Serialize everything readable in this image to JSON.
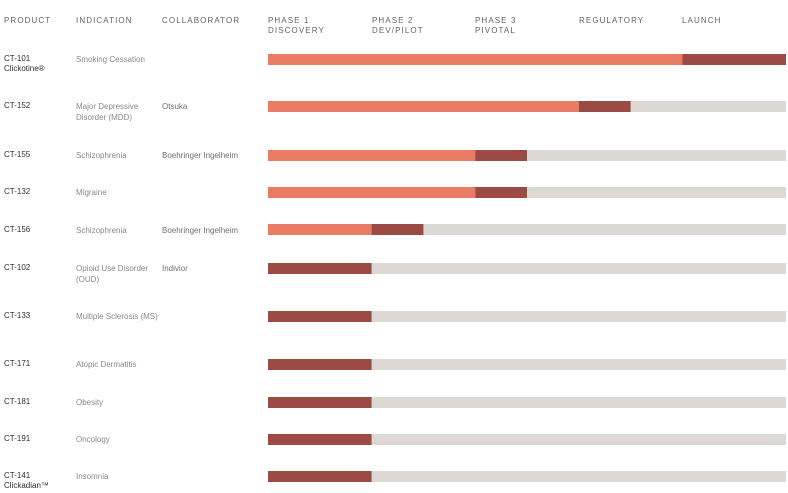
{
  "headers": {
    "product": "PRODUCT",
    "indication": "INDICATION",
    "collaborator": "COLLABORATOR",
    "phases": [
      {
        "line1": "PHASE 1",
        "line2": "DISCOVERY"
      },
      {
        "line1": "PHASE 2",
        "line2": "DEV/PILOT"
      },
      {
        "line1": "PHASE 3",
        "line2": "PIVOTAL"
      },
      {
        "line1": "REGULATORY",
        "line2": ""
      },
      {
        "line1": "LAUNCH",
        "line2": ""
      }
    ]
  },
  "colors": {
    "track": "#dcd9d5",
    "completed": "#ea7c63",
    "current": "#9b4a44"
  },
  "chart_data": {
    "type": "bar",
    "orientation": "horizontal",
    "stages": [
      "Phase 1 Discovery",
      "Phase 2 Dev/Pilot",
      "Phase 3 Pivotal",
      "Regulatory",
      "Launch"
    ],
    "stage_range": [
      0,
      5
    ],
    "rows": [
      {
        "product": "CT-101",
        "product_sub": "Clickotine®",
        "indication": "Smoking Cessation",
        "collaborator": "",
        "completed": 4,
        "current": 5
      },
      {
        "product": "CT-152",
        "product_sub": "",
        "indication": "Major Depressive Disorder (MDD)",
        "collaborator": "Otsuka",
        "completed": 3,
        "current": 3.5
      },
      {
        "product": "CT-155",
        "product_sub": "",
        "indication": "Schizophrenia",
        "collaborator": "Boehringer Ingelheim",
        "completed": 2,
        "current": 2.5
      },
      {
        "product": "CT-132",
        "product_sub": "",
        "indication": "Migraine",
        "collaborator": "",
        "completed": 2,
        "current": 2.5
      },
      {
        "product": "CT-156",
        "product_sub": "",
        "indication": "Schizophrenia",
        "collaborator": "Boehringer Ingelheim",
        "completed": 1,
        "current": 1.5
      },
      {
        "product": "CT-102",
        "product_sub": "",
        "indication": "Opioid Use Disorder (OUD)",
        "collaborator": "Indivior",
        "completed": 0,
        "current": 1
      },
      {
        "product": "CT-133",
        "product_sub": "",
        "indication": "Multiple Sclerosis (MS)",
        "collaborator": "",
        "completed": 0,
        "current": 1
      },
      {
        "product": "CT-171",
        "product_sub": "",
        "indication": "Atopic Dermatitis",
        "collaborator": "",
        "completed": 0,
        "current": 1
      },
      {
        "product": "CT-181",
        "product_sub": "",
        "indication": "Obesity",
        "collaborator": "",
        "completed": 0,
        "current": 1
      },
      {
        "product": "CT-191",
        "product_sub": "",
        "indication": "Oncology",
        "collaborator": "",
        "completed": 0,
        "current": 1
      },
      {
        "product": "CT-141",
        "product_sub": "Clickadian™",
        "indication": "Insomnia",
        "collaborator": "",
        "completed": 0,
        "current": 1
      }
    ]
  }
}
